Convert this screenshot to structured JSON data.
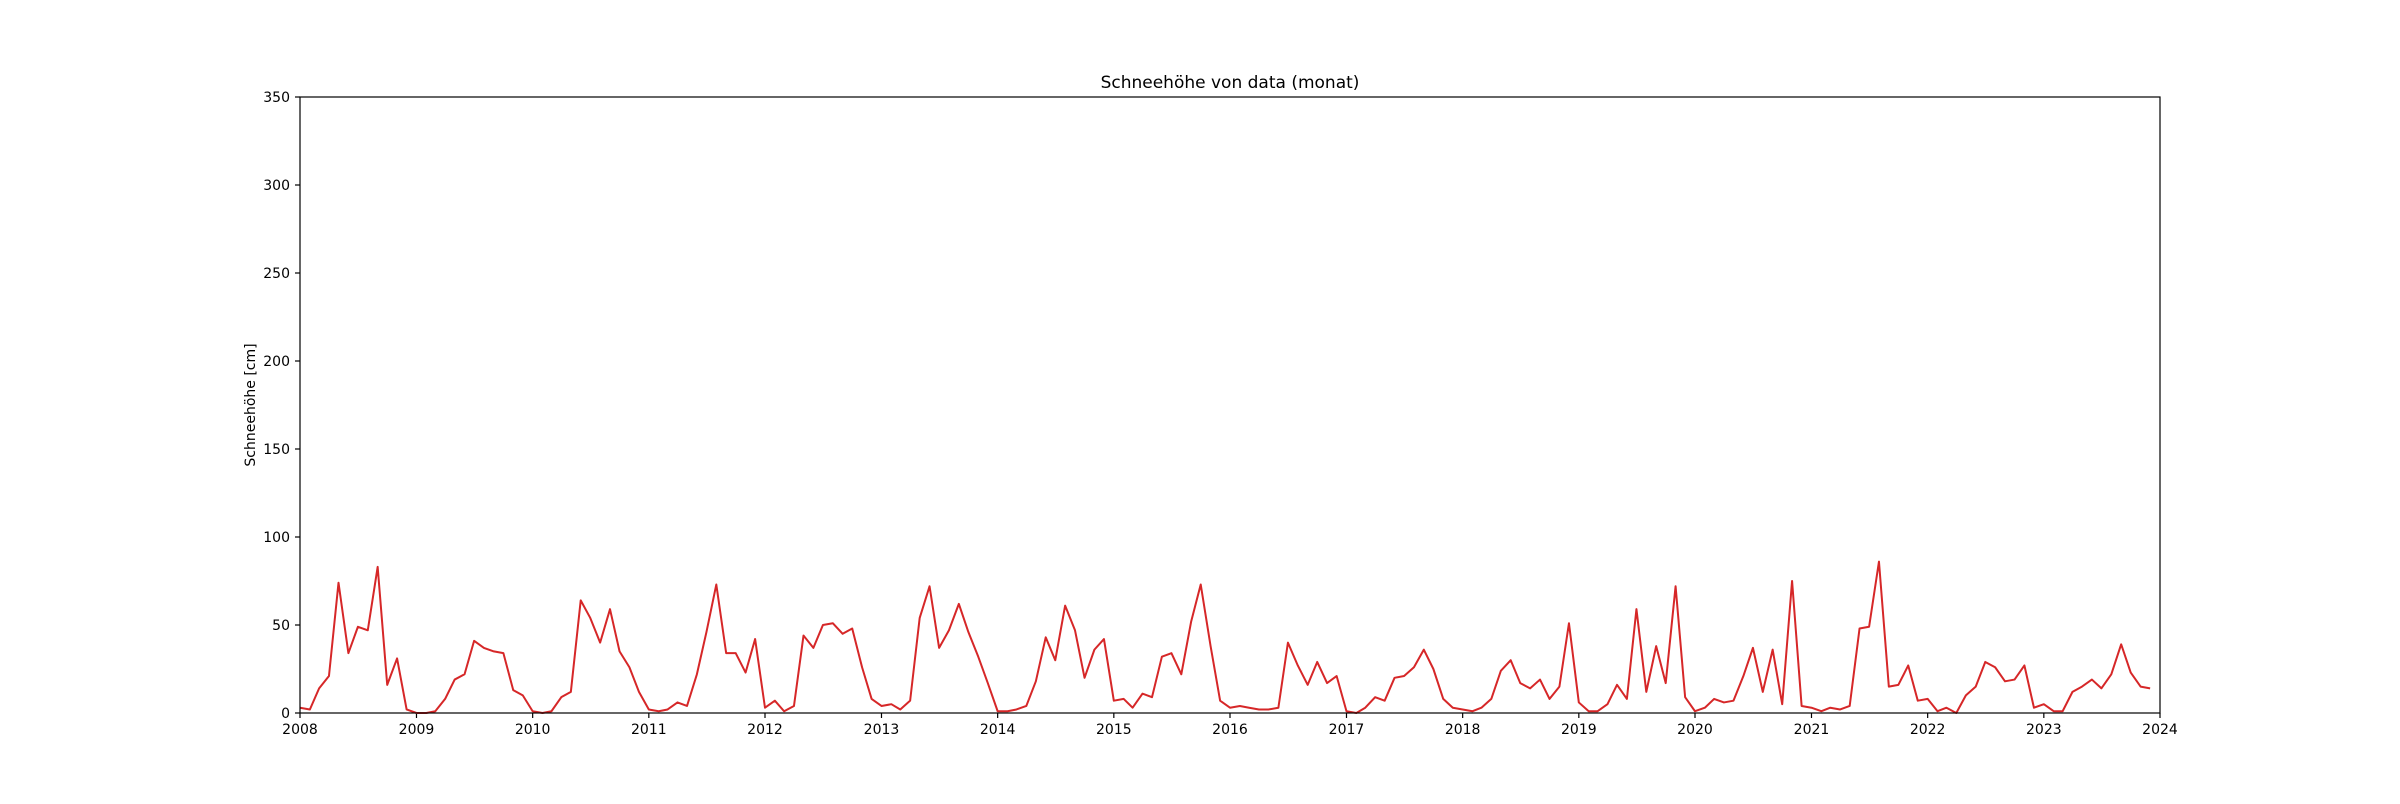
{
  "chart_data": {
    "type": "line",
    "title": "Schneehöhe von data (monat)",
    "xlabel": "",
    "ylabel": "Schneehöhe [cm]",
    "xlim": [
      "2008-01-01",
      "2024-01-01"
    ],
    "ylim": [
      0,
      350
    ],
    "x_ticks": [
      "2008",
      "2009",
      "2010",
      "2011",
      "2012",
      "2013",
      "2014",
      "2015",
      "2016",
      "2017",
      "2018",
      "2019",
      "2020",
      "2021",
      "2022",
      "2023",
      "2024"
    ],
    "y_ticks": [
      0,
      50,
      100,
      150,
      200,
      250,
      300,
      350
    ],
    "grid": false,
    "legend": "none",
    "line_color": "#d62728",
    "series": [
      {
        "x": [
          "2008-01",
          "2008-02",
          "2008-03",
          "2008-04",
          "2008-05",
          "2008-06",
          "2008-07",
          "2008-08",
          "2008-09",
          "2008-10",
          "2008-11",
          "2008-12",
          "2009-01",
          "2009-02",
          "2009-03",
          "2009-04",
          "2009-05",
          "2009-06",
          "2009-07",
          "2009-08",
          "2009-09",
          "2009-10",
          "2009-11",
          "2009-12",
          "2010-01",
          "2010-02",
          "2010-03",
          "2010-04",
          "2010-05",
          "2010-06",
          "2010-07",
          "2010-08",
          "2010-09",
          "2010-10",
          "2010-11",
          "2010-12",
          "2011-01",
          "2011-02",
          "2011-03",
          "2011-04",
          "2011-05",
          "2011-06",
          "2011-07",
          "2011-08",
          "2011-09",
          "2011-10",
          "2011-11",
          "2011-12",
          "2012-01",
          "2012-02",
          "2012-03",
          "2012-04",
          "2012-05",
          "2012-06",
          "2012-07",
          "2012-08",
          "2012-09",
          "2012-10",
          "2012-11",
          "2012-12",
          "2013-01",
          "2013-02",
          "2013-03",
          "2013-04",
          "2013-05",
          "2013-06",
          "2013-07",
          "2013-08",
          "2013-09",
          "2013-10",
          "2013-11",
          "2013-12",
          "2014-01",
          "2014-02",
          "2014-03",
          "2014-04",
          "2014-05",
          "2014-06",
          "2014-07",
          "2014-08",
          "2014-09",
          "2014-10",
          "2014-11",
          "2014-12",
          "2015-01",
          "2015-02",
          "2015-03",
          "2015-04",
          "2015-05",
          "2015-06",
          "2015-07",
          "2015-08",
          "2015-09",
          "2015-10",
          "2015-11",
          "2015-12",
          "2016-01",
          "2016-02",
          "2016-03",
          "2016-04",
          "2016-05",
          "2016-06",
          "2016-07",
          "2016-08",
          "2016-09",
          "2016-10",
          "2016-11",
          "2016-12",
          "2017-01",
          "2017-02",
          "2017-03",
          "2017-04",
          "2017-05",
          "2017-06",
          "2017-07",
          "2017-08",
          "2017-09",
          "2017-10",
          "2017-11",
          "2017-12",
          "2018-01",
          "2018-02",
          "2018-03",
          "2018-04",
          "2018-05",
          "2018-06",
          "2018-07",
          "2018-08",
          "2018-09",
          "2018-10",
          "2018-11",
          "2018-12",
          "2019-01",
          "2019-02",
          "2019-03",
          "2019-04",
          "2019-05",
          "2019-06",
          "2019-07",
          "2019-08",
          "2019-09",
          "2019-10",
          "2019-11",
          "2019-12",
          "2020-01",
          "2020-02",
          "2020-03",
          "2020-04",
          "2020-05",
          "2020-06",
          "2020-07",
          "2020-08",
          "2020-09",
          "2020-10",
          "2020-11",
          "2020-12",
          "2021-01",
          "2021-02",
          "2021-03",
          "2021-04",
          "2021-05",
          "2021-06",
          "2021-07",
          "2021-08",
          "2021-09",
          "2021-10",
          "2021-11",
          "2021-12",
          "2022-01",
          "2022-02",
          "2022-03",
          "2022-04",
          "2022-05",
          "2022-06",
          "2022-07",
          "2022-08",
          "2022-09",
          "2022-10",
          "2022-11",
          "2022-12",
          "2023-01",
          "2023-02",
          "2023-03",
          "2023-04",
          "2023-05",
          "2023-06",
          "2023-07",
          "2023-08",
          "2023-09",
          "2023-10",
          "2023-11",
          "2023-12"
        ],
        "y": [
          3,
          2,
          14,
          21,
          74,
          34,
          49,
          47,
          83,
          16,
          31,
          2,
          0,
          0,
          1,
          8,
          19,
          22,
          41,
          37,
          35,
          34,
          13,
          10,
          1,
          0,
          1,
          9,
          12,
          64,
          54,
          40,
          59,
          35,
          26,
          12,
          2,
          1,
          2,
          6,
          4,
          22,
          46,
          73,
          34,
          34,
          23,
          42,
          3,
          7,
          1,
          4,
          44,
          37,
          50,
          51,
          45,
          48,
          26,
          8,
          4,
          5,
          2,
          7,
          54,
          72,
          37,
          47,
          62,
          46,
          32,
          17,
          1,
          1,
          2,
          4,
          18,
          43,
          30,
          61,
          47,
          20,
          36,
          42,
          7,
          8,
          3,
          11,
          9,
          32,
          34,
          22,
          52,
          73,
          38,
          7,
          3,
          4,
          3,
          2,
          2,
          3,
          40,
          27,
          16,
          29,
          17,
          21,
          1,
          0,
          3,
          9,
          7,
          20,
          21,
          26,
          36,
          25,
          8,
          3,
          2,
          1,
          3,
          8,
          24,
          30,
          17,
          14,
          19,
          8,
          15,
          51,
          6,
          1,
          1,
          5,
          16,
          8,
          59,
          12,
          38,
          17,
          72,
          9,
          1,
          3,
          8,
          6,
          7,
          21,
          37,
          12,
          36,
          5,
          75,
          4,
          3,
          1,
          3,
          2,
          4,
          48,
          49,
          86,
          15,
          16,
          27,
          7,
          8,
          1,
          3,
          0,
          10,
          15,
          29,
          26,
          18,
          19,
          27,
          3,
          5,
          1,
          1,
          12,
          15,
          19,
          14,
          22,
          39,
          23,
          15,
          14
        ]
      }
    ]
  }
}
